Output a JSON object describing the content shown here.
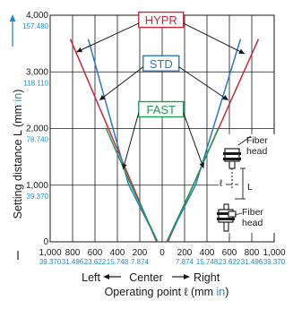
{
  "colors": {
    "HYPR": "#c8283c",
    "STD": "#2f78c0",
    "FAST": "#1f9a55",
    "inch": "#1a8fd8",
    "axis": "#1a1a1a"
  },
  "chart_data": {
    "type": "line",
    "title": "",
    "xlabel": {
      "prefix": "Operating point ℓ (mm ",
      "unit_in": "in",
      "suffix": ")"
    },
    "ylabel": {
      "prefix": "Setting distance L (mm ",
      "unit_in": "in",
      "suffix": ")"
    },
    "x_direction": {
      "left": "Left",
      "center": "Center",
      "right": "Right"
    },
    "xlim": [
      -1000,
      1000
    ],
    "ylim": [
      0,
      4000
    ],
    "grid": true,
    "x_ticks": [
      {
        "value": -1000,
        "mm": "1,000",
        "in": "39.370"
      },
      {
        "value": -800,
        "mm": "800",
        "in": "31.496"
      },
      {
        "value": -600,
        "mm": "600",
        "in": "23.622"
      },
      {
        "value": -400,
        "mm": "400",
        "in": "15.748"
      },
      {
        "value": -200,
        "mm": "200",
        "in": "7.874"
      },
      {
        "value": 0,
        "mm": "0",
        "in": ""
      },
      {
        "value": 200,
        "mm": "200",
        "in": "7.874"
      },
      {
        "value": 400,
        "mm": "400",
        "in": "15.748"
      },
      {
        "value": 600,
        "mm": "600",
        "in": "23.622"
      },
      {
        "value": 800,
        "mm": "800",
        "in": "31.496"
      },
      {
        "value": 1000,
        "mm": "1,000",
        "in": "39.370"
      }
    ],
    "y_ticks": [
      {
        "value": 0,
        "mm": "0",
        "in": ""
      },
      {
        "value": 1000,
        "mm": "1,000",
        "in": "39.370"
      },
      {
        "value": 2000,
        "mm": "2,000",
        "in": "78.740"
      },
      {
        "value": 3000,
        "mm": "3,000",
        "in": "118.110"
      },
      {
        "value": 4000,
        "mm": "4,000",
        "in": "157.480"
      }
    ],
    "series": [
      {
        "name": "HYPR",
        "left": [
          [
            -50,
            0
          ],
          [
            -820,
            3580
          ]
        ],
        "right": [
          [
            50,
            0
          ],
          [
            860,
            3580
          ]
        ]
      },
      {
        "name": "STD",
        "left": [
          [
            -40,
            0
          ],
          [
            -300,
            1010
          ],
          [
            -660,
            3580
          ]
        ],
        "right": [
          [
            40,
            0
          ],
          [
            300,
            1010
          ],
          [
            700,
            3580
          ]
        ]
      },
      {
        "name": "FAST",
        "left": [
          [
            -40,
            0
          ],
          [
            -280,
            1010
          ],
          [
            -500,
            2000
          ]
        ],
        "right": [
          [
            40,
            0
          ],
          [
            280,
            1010
          ],
          [
            500,
            2000
          ]
        ]
      }
    ],
    "labels": [
      {
        "series": "HYPR",
        "text": "HYPR",
        "pos": [
          -10,
          3920
        ]
      },
      {
        "series": "STD",
        "text": "STD",
        "pos": [
          -10,
          3150
        ]
      },
      {
        "series": "FAST",
        "text": "FAST",
        "pos": [
          -10,
          2340
        ]
      }
    ],
    "inset": {
      "label_top": [
        "Fiber",
        "head"
      ],
      "label_bottom": [
        "Fiber",
        "head"
      ],
      "ell": "ℓ",
      "L": "L"
    }
  }
}
